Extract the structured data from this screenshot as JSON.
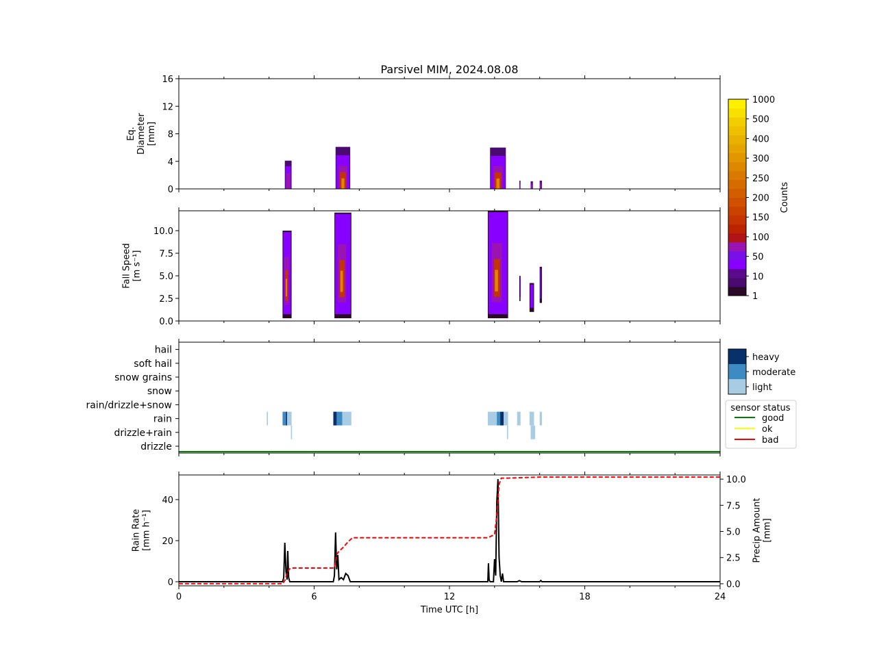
{
  "chart_data": [
    {
      "type": "heatmap",
      "panel": "diameter",
      "title": "Parsivel MIM, 2024.08.08",
      "ylabel_lines": [
        "Eq.",
        "Diameter",
        "[mm]"
      ],
      "ylim": [
        0,
        16
      ],
      "yticks": [
        0,
        4,
        8,
        12,
        16
      ],
      "xlim": [
        0,
        24
      ],
      "blobs": [
        {
          "t0": 4.7,
          "t1": 5.0,
          "ytop": 4.1,
          "core": "purple"
        },
        {
          "t0": 6.95,
          "t1": 7.6,
          "ytop": 6.1,
          "core": "orange"
        },
        {
          "t0": 13.8,
          "t1": 14.5,
          "ytop": 6.0,
          "core": "orange"
        },
        {
          "t0": 15.1,
          "t1": 15.15,
          "ytop": 1.2,
          "core": "purple"
        },
        {
          "t0": 15.6,
          "t1": 15.7,
          "ytop": 1.1,
          "core": "purple"
        },
        {
          "t0": 16.0,
          "t1": 16.1,
          "ytop": 1.2,
          "core": "purple"
        }
      ]
    },
    {
      "type": "heatmap",
      "panel": "fall_speed",
      "ylabel_lines": [
        "Fall Speed",
        "[m s⁻¹]"
      ],
      "ylim": [
        0,
        12.2
      ],
      "yticks": [
        0.0,
        2.5,
        5.0,
        7.5,
        10.0
      ],
      "ytick_labels": [
        "0.0",
        "2.5",
        "5.0",
        "7.5",
        "10.0"
      ],
      "xlim": [
        0,
        24
      ],
      "blobs": [
        {
          "t0": 4.6,
          "t1": 5.0,
          "ylow": 0.3,
          "ytop": 10.0
        },
        {
          "t0": 6.9,
          "t1": 7.65,
          "ylow": 0.3,
          "ytop": 12.0
        },
        {
          "t0": 13.7,
          "t1": 14.6,
          "ylow": 0.3,
          "ytop": 12.2
        },
        {
          "t0": 15.1,
          "t1": 15.15,
          "ylow": 2.2,
          "ytop": 5.0
        },
        {
          "t0": 15.55,
          "t1": 15.75,
          "ylow": 1.0,
          "ytop": 4.2
        },
        {
          "t0": 16.0,
          "t1": 16.1,
          "ylow": 2.0,
          "ytop": 6.0
        }
      ]
    },
    {
      "type": "heatmap",
      "panel": "precip_type",
      "categories": [
        "drizzle",
        "drizzle+rain",
        "rain",
        "rain/drizzle+snow",
        "snow",
        "snow grains",
        "soft hail",
        "hail"
      ],
      "intensity_levels": [
        "light",
        "moderate",
        "heavy"
      ],
      "intensity_colors": [
        "#a8cce3",
        "#3d8bc2",
        "#08306b"
      ],
      "sensor_status_line": {
        "value": "good",
        "color": "#008000"
      },
      "events": [
        {
          "category": "rain",
          "t0": 3.9,
          "t1": 3.95,
          "level": "light"
        },
        {
          "category": "rain",
          "t0": 4.6,
          "t1": 4.75,
          "level": "moderate"
        },
        {
          "category": "rain",
          "t0": 4.75,
          "t1": 4.8,
          "level": "heavy"
        },
        {
          "category": "rain",
          "t0": 4.8,
          "t1": 5.0,
          "level": "light"
        },
        {
          "category": "drizzle+rain",
          "t0": 4.97,
          "t1": 5.02,
          "level": "light"
        },
        {
          "category": "rain",
          "t0": 6.85,
          "t1": 7.0,
          "level": "heavy"
        },
        {
          "category": "rain",
          "t0": 7.0,
          "t1": 7.25,
          "level": "moderate"
        },
        {
          "category": "rain",
          "t0": 7.25,
          "t1": 7.65,
          "level": "light"
        },
        {
          "category": "rain",
          "t0": 13.7,
          "t1": 14.1,
          "level": "light"
        },
        {
          "category": "rain",
          "t0": 14.1,
          "t1": 14.25,
          "level": "moderate"
        },
        {
          "category": "rain",
          "t0": 14.25,
          "t1": 14.4,
          "level": "heavy"
        },
        {
          "category": "rain",
          "t0": 14.4,
          "t1": 14.6,
          "level": "light"
        },
        {
          "category": "drizzle+rain",
          "t0": 14.55,
          "t1": 14.6,
          "level": "light"
        },
        {
          "category": "rain",
          "t0": 15.0,
          "t1": 15.15,
          "level": "light"
        },
        {
          "category": "rain",
          "t0": 15.55,
          "t1": 15.75,
          "level": "light"
        },
        {
          "category": "drizzle+rain",
          "t0": 15.6,
          "t1": 15.8,
          "level": "light"
        },
        {
          "category": "rain",
          "t0": 16.0,
          "t1": 16.1,
          "level": "light"
        }
      ],
      "xlim": [
        0,
        24
      ]
    },
    {
      "type": "line",
      "panel": "rain_rate",
      "xlabel": "Time UTC [h]",
      "xlim": [
        0,
        24
      ],
      "xticks": [
        0,
        6,
        12,
        18,
        24
      ],
      "ylabel_lines": [
        "Rain Rate",
        "[mm h⁻¹]"
      ],
      "ylim": [
        -2,
        52
      ],
      "yticks": [
        0,
        20,
        40
      ],
      "y2label_lines": [
        "Precip Amount",
        "[mm]"
      ],
      "y2lim": [
        -0.2,
        10.4
      ],
      "y2ticks": [
        0.0,
        2.5,
        5.0,
        7.5,
        10.0
      ],
      "y2tick_labels": [
        "0.0",
        "2.5",
        "5.0",
        "7.5",
        "10.0"
      ],
      "series": [
        {
          "axis": "left",
          "color": "#000000",
          "style": "solid",
          "x": [
            0,
            4.6,
            4.65,
            4.7,
            4.75,
            4.8,
            4.83,
            4.87,
            4.92,
            5.0,
            6.85,
            6.9,
            6.95,
            7.0,
            7.05,
            7.1,
            7.2,
            7.3,
            7.4,
            7.5,
            7.6,
            7.7,
            13.7,
            13.73,
            13.76,
            13.8,
            13.95,
            14.0,
            14.05,
            14.1,
            14.15,
            14.2,
            14.25,
            14.3,
            14.35,
            14.4,
            14.45,
            14.5,
            14.55,
            15.0,
            15.1,
            15.2,
            16.0,
            16.05,
            16.1,
            24
          ],
          "y": [
            0,
            0,
            2,
            19,
            5,
            1,
            15,
            2,
            0,
            0,
            0,
            3,
            24,
            6,
            13,
            1,
            2,
            1,
            4,
            3,
            0,
            0,
            0,
            9,
            1,
            0,
            0,
            11,
            3,
            39,
            50,
            12,
            3,
            0,
            4,
            0,
            0,
            0,
            0,
            0,
            0.5,
            0,
            0,
            0.6,
            0,
            0
          ]
        },
        {
          "axis": "right",
          "color": "#ff0000",
          "style": "dashed",
          "x": [
            0,
            4.6,
            4.7,
            4.8,
            4.9,
            5.0,
            6.9,
            7.0,
            7.1,
            7.3,
            7.5,
            7.7,
            13.7,
            14.0,
            14.1,
            14.2,
            14.3,
            14.6,
            16.0,
            24
          ],
          "y": [
            0,
            0,
            0.3,
            1.0,
            1.4,
            1.5,
            1.5,
            2.8,
            3.1,
            3.5,
            4.0,
            4.4,
            4.4,
            4.7,
            6.5,
            9.5,
            10.1,
            10.1,
            10.2,
            10.2
          ]
        }
      ]
    }
  ],
  "colorbar": {
    "label": "Counts",
    "tick_labels": [
      "1",
      "10",
      "50",
      "100",
      "150",
      "200",
      "250",
      "300",
      "400",
      "500",
      "1000"
    ],
    "colors": [
      "#2a0a26",
      "#4a0a70",
      "#5a0a8a",
      "#8800ff",
      "#7a10e8",
      "#9a14b4",
      "#b01418",
      "#bc2400",
      "#c43400",
      "#ca4200",
      "#ce5000",
      "#d25e00",
      "#d66c00",
      "#da7a00",
      "#de8800",
      "#e29600",
      "#e6a400",
      "#eab200",
      "#eec000",
      "#f2ce00",
      "#f8e000",
      "#fff000"
    ]
  },
  "intensity_legend": [
    "heavy",
    "moderate",
    "light"
  ],
  "status_legend": {
    "title": "sensor status",
    "items": [
      {
        "label": "good",
        "color": "#008000"
      },
      {
        "label": "ok",
        "color": "#ffff00"
      },
      {
        "label": "bad",
        "color": "#ff0000"
      }
    ]
  }
}
